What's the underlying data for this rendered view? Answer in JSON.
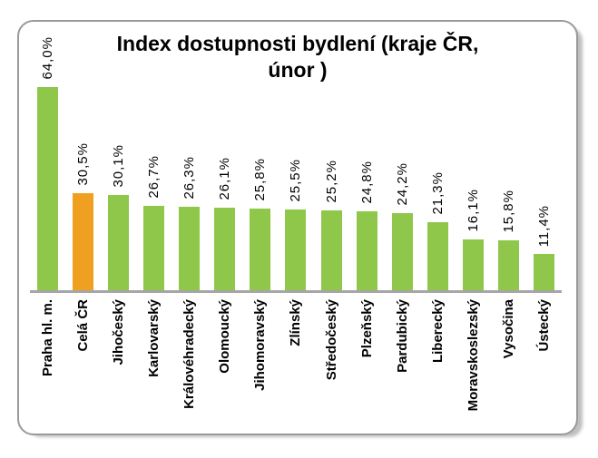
{
  "window": {
    "background_color": "#FFFFFF",
    "frame_border_color": "#9A9A9A",
    "frame_shadow_color": "#C9C9C9"
  },
  "chart_data": {
    "type": "bar",
    "title": "Index dostupnosti bydlení (kraje ČR, únor )",
    "title_lines": [
      "Index dostupnosti bydlení (kraje ČR,",
      "únor )"
    ],
    "categories": [
      "Praha hl. m.",
      "Celá ČR",
      "Jihočeský",
      "Karlovarský",
      "Královéhradecký",
      "Olomoucký",
      "Jihomoravský",
      "Zlínský",
      "Středočeský",
      "Plzeňský",
      "Pardubický",
      "Liberecký",
      "Moravskoslezský",
      "Vysočina",
      "Ústecký"
    ],
    "values": [
      64.0,
      30.5,
      30.1,
      26.7,
      26.3,
      26.1,
      25.8,
      25.5,
      25.2,
      24.8,
      24.2,
      21.3,
      16.1,
      15.8,
      11.4
    ],
    "value_labels": [
      "64,0%",
      "30,5%",
      "30,1%",
      "26,7%",
      "26,3%",
      "26,1%",
      "25,8%",
      "25,5%",
      "25,2%",
      "24,8%",
      "24,2%",
      "21,3%",
      "16,1%",
      "15,8%",
      "11,4%"
    ],
    "highlight_index": 1,
    "bar_color": "#8FC74A",
    "highlight_color": "#F0A020",
    "axis_line_color": "#A6A6A6",
    "text_color": "#000000",
    "label_orientation": "rotated-90-ccw",
    "legend": "none",
    "gridlines": "off",
    "y_axis_visible": false
  }
}
